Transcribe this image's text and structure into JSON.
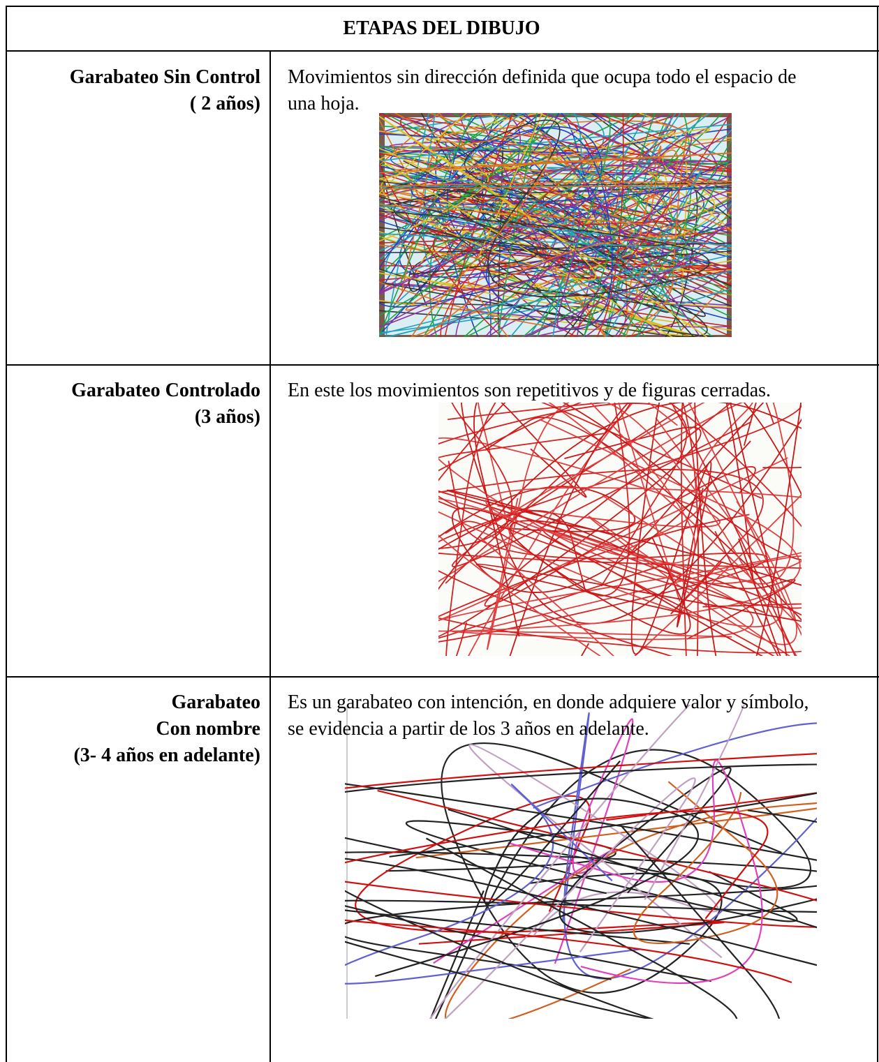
{
  "table": {
    "title": "ETAPAS DEL DIBUJO",
    "rows": [
      {
        "stage": [
          "Garabateo Sin Control",
          "( 2 años)"
        ],
        "description": [
          "Movimientos sin dirección definida que ocupa todo el espacio de",
          "una hoja."
        ]
      },
      {
        "stage": [
          "Garabateo Controlado",
          "(3 años)"
        ],
        "description": [
          "En este los movimientos son repetitivos y de figuras cerradas."
        ]
      },
      {
        "stage": [
          "Garabateo",
          "Con nombre",
          "(3- 4 años en adelante)"
        ],
        "description": [
          "Es un garabateo con intención, en donde adquiere valor y símbolo,",
          "se evidencia a partir de los 3 años en adelante."
        ]
      }
    ]
  }
}
